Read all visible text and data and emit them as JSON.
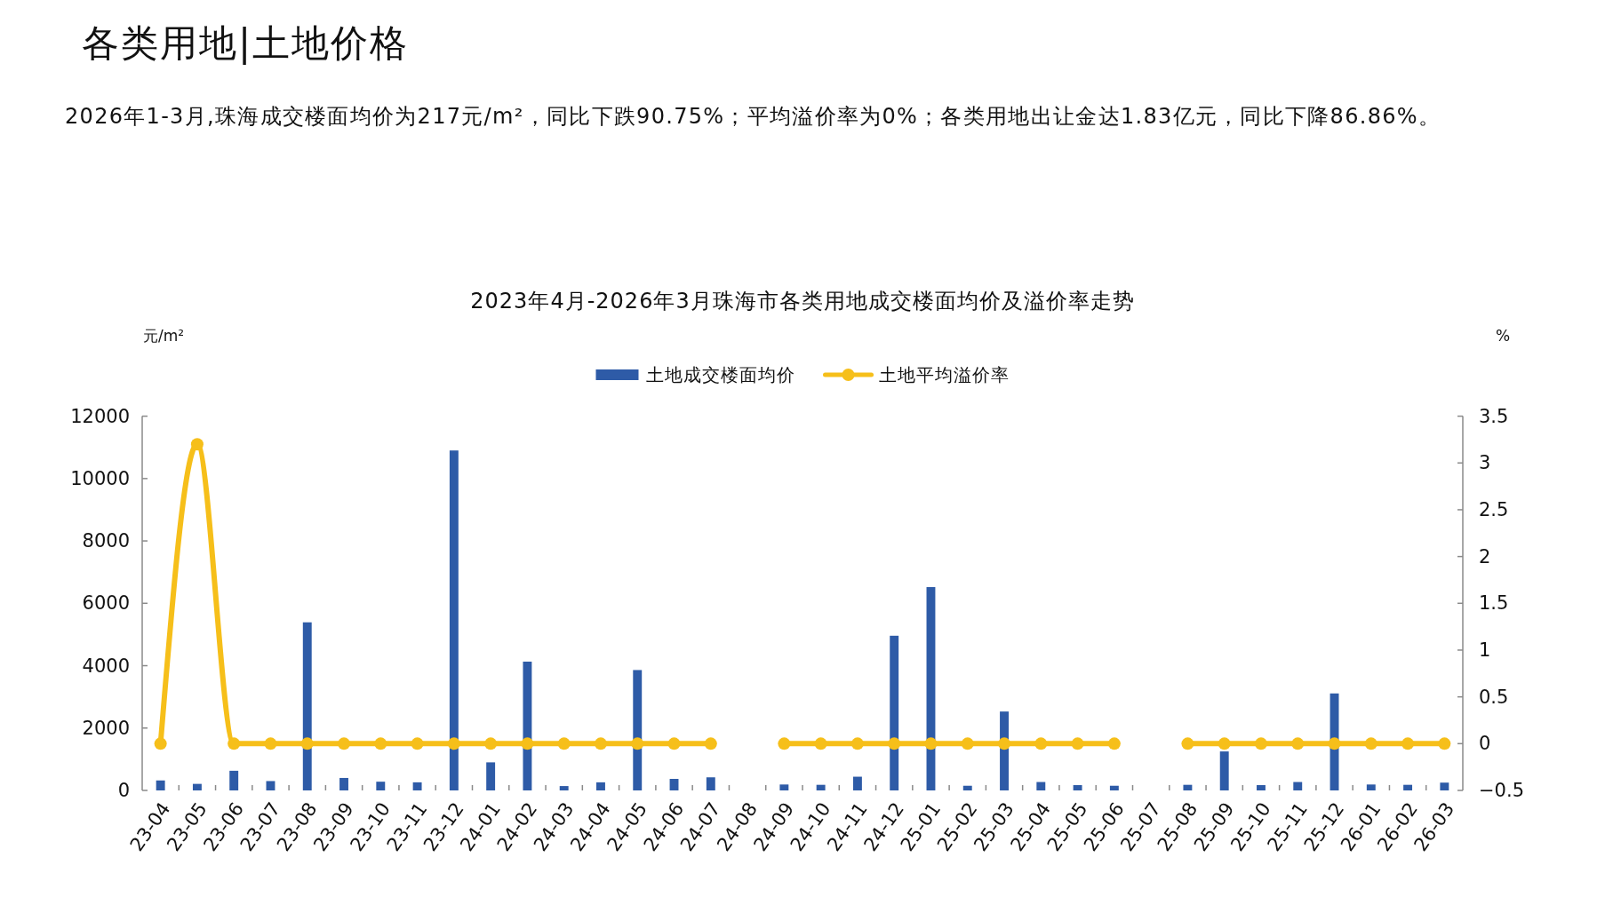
{
  "chart_data": {
    "type": "bar",
    "title": "2023年4月-2026年3月珠海市各类用地成交楼面均价及溢价率走势",
    "ylabel": "元/m²",
    "y2label": "%",
    "annotations": [
      "各类用地|土地价格",
      "2026年1-3月,珠海成交楼面均价为217元/m²，同比下跌90.75%；平均溢价率为0%；各类用地出让金达1.83亿元，同比下降86.86%。"
    ],
    "categories": [
      "23-04",
      "23-05",
      "23-06",
      "23-07",
      "23-08",
      "23-09",
      "23-10",
      "23-11",
      "23-12",
      "24-01",
      "24-02",
      "24-03",
      "24-04",
      "24-05",
      "24-06",
      "24-07",
      "24-08",
      "24-09",
      "24-10",
      "24-11",
      "24-12",
      "25-01",
      "25-02",
      "25-03",
      "25-04",
      "25-05",
      "25-06",
      "25-07",
      "25-08",
      "25-09",
      "25-10",
      "25-11",
      "25-12",
      "26-01",
      "26-02",
      "26-03"
    ],
    "series": [
      {
        "name": "土地成交楼面均价",
        "color": "#2e5ba7",
        "values": [
          320,
          210,
          630,
          300,
          5390,
          400,
          280,
          260,
          10900,
          900,
          4130,
          140,
          260,
          3860,
          370,
          420,
          null,
          190,
          180,
          440,
          4960,
          6520,
          150,
          2530,
          270,
          170,
          150,
          null,
          180,
          1250,
          170,
          270,
          3110,
          190,
          180,
          250
        ]
      },
      {
        "name": "土地平均溢价率",
        "type": "line",
        "axis": "y2",
        "color": "#f6bf1a",
        "values": [
          0,
          3.2,
          0,
          0,
          0,
          0,
          0,
          0,
          0,
          0,
          0,
          0,
          0,
          0,
          0,
          0,
          null,
          0,
          0,
          0,
          0,
          0,
          0,
          0,
          0,
          0,
          0,
          null,
          0,
          0,
          0,
          0,
          0,
          0,
          0,
          0
        ]
      }
    ],
    "ylim": [
      0,
      12000
    ],
    "yticks": [
      0,
      2000,
      4000,
      6000,
      8000,
      10000,
      12000
    ],
    "y2lim": [
      -0.5,
      3.5
    ],
    "y2ticks": [
      -0.5,
      0,
      0.5,
      1,
      1.5,
      2,
      2.5,
      3,
      3.5
    ],
    "legend": "top",
    "marker": "circle"
  }
}
